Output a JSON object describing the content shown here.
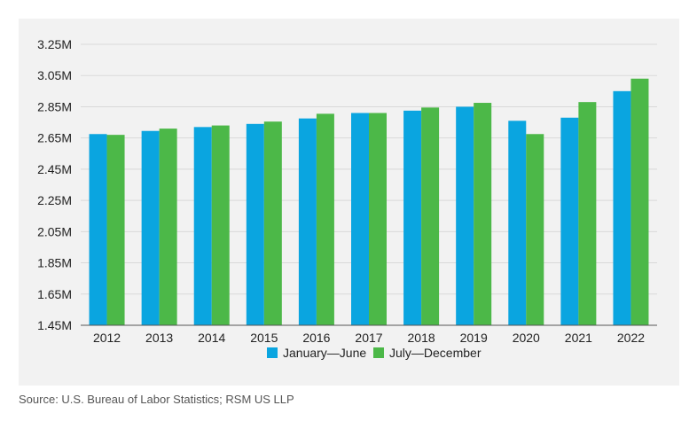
{
  "chart_data": {
    "type": "bar",
    "categories": [
      "2012",
      "2013",
      "2014",
      "2015",
      "2016",
      "2017",
      "2018",
      "2019",
      "2020",
      "2021",
      "2022"
    ],
    "series": [
      {
        "name": "January—June",
        "color": "#0aa5e0",
        "values": [
          2.675,
          2.695,
          2.72,
          2.74,
          2.775,
          2.81,
          2.825,
          2.85,
          2.76,
          2.78,
          2.95
        ]
      },
      {
        "name": "July—December",
        "color": "#4cb848",
        "values": [
          2.67,
          2.71,
          2.73,
          2.755,
          2.805,
          2.81,
          2.845,
          2.875,
          2.675,
          2.88,
          3.03
        ]
      }
    ],
    "yticks": [
      "1.45M",
      "1.65M",
      "1.85M",
      "2.05M",
      "2.25M",
      "2.45M",
      "2.65M",
      "2.85M",
      "3.05M",
      "3.25M"
    ],
    "ylim": [
      1.45,
      3.25
    ],
    "grid": true,
    "legend_position": "bottom"
  },
  "source": "Source: U.S. Bureau of Labor Statistics; RSM US LLP"
}
